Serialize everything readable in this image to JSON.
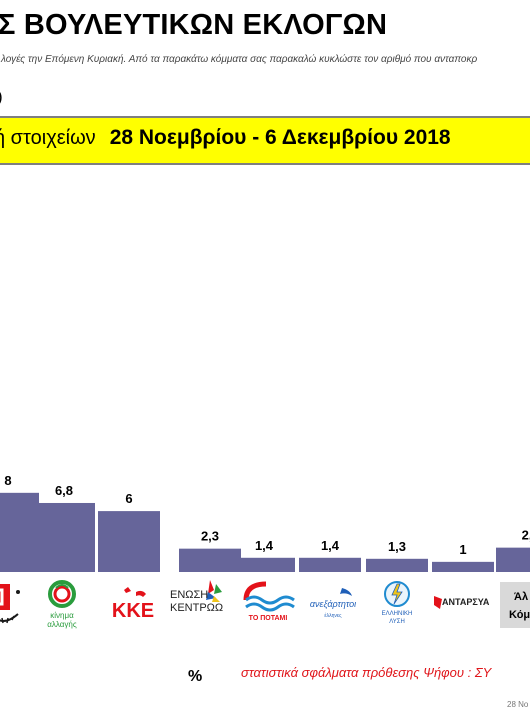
{
  "header": {
    "title": "Σ ΒΟΥΛΕΥΤΙΚΩΝ ΕΚΛΟΓΩΝ",
    "subtitle": "λογές την Επόμενη Κυριακή. Από τα παρακάτω κόμματα σας παρακαλώ κυκλώστε τον αριθμό που ανταποκρ",
    "paren": ")",
    "banner_lead": "ή στοιχείων",
    "banner_date": "28 Νοεμβρίου - 6 Δεκεμβρίου 2018"
  },
  "chart_data": {
    "type": "bar",
    "categories": [
      "",
      "ΚΙΝΗΜΑ ΑΛΛΑΓΗΣ",
      "ΚΚΕ",
      "ΕΝΩΣΗ ΚΕΝΤΡΩΩΝ",
      "ΤΟ ΠΟΤΑΜΙ",
      "ΑΝΕΞΑΡΤΗΤΟΙ ΕΛΛΗΝΕΣ",
      "ΕΛΛΗΝΙΚΗ ΛΥΣΗ",
      "ΑΝΤΑΡΣΥΑ",
      "Άλλο Κόμμα"
    ],
    "values": [
      7.8,
      6.8,
      6,
      2.3,
      1.4,
      1.4,
      1.3,
      1,
      2.4
    ],
    "labels": [
      "8",
      "6,8",
      "6",
      "2,3",
      "1,4",
      "1,4",
      "1,3",
      "1",
      "2,"
    ],
    "bar_color": "#66659a",
    "ylim": [
      0,
      8
    ]
  },
  "logos": {
    "kinal": {
      "l1": "κίνημα",
      "l2": "αλλαγής"
    },
    "kke": "ΚΚΕ",
    "enosi": {
      "l1": "ΕΝΩΣΗ",
      "l2": "ΚΕΝΤΡΩΩΝ"
    },
    "potami": "ΤΟ ΠΟΤΑΜΙ",
    "anel": {
      "l1": "ανεξάρτητοι",
      "l2": "έλληνες"
    },
    "lysi": {
      "l1": "ΕΛΛΗΝΙΚΗ",
      "l2": "ΛΥΣΗ"
    },
    "antarsya": "ΑΝΤΑΡΣΥΑ",
    "other": {
      "l1": "Άλ",
      "l2": "Κόμ"
    }
  },
  "footer": {
    "percent": "%",
    "note": "στατιστικά σφάλματα πρόθεσης Ψήφου : ΣΥ",
    "date": "28 Νο"
  }
}
